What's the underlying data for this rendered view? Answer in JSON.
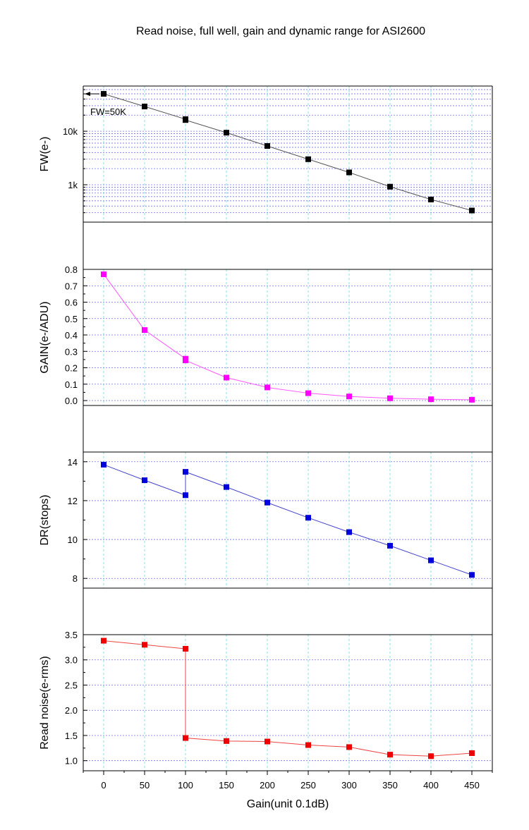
{
  "chart_data": {
    "title": "Read noise, full well, gain and dynamic range for ASI2600",
    "xlabel": "Gain(unit 0.1dB)",
    "xlim": [
      -25,
      475
    ],
    "xticks": [
      "0",
      "50",
      "100",
      "150",
      "200",
      "250",
      "300",
      "350",
      "400",
      "450"
    ],
    "grid": true,
    "panels": [
      {
        "type": "line",
        "ylabel": "FW(e-)",
        "yscale": "log",
        "ylim": [
          200,
          70000
        ],
        "yticks": [
          "1k",
          "10k"
        ],
        "color": "#000000",
        "line_color": "#555555",
        "annotation": "FW=50K",
        "x": [
          0,
          50,
          100,
          100,
          150,
          200,
          250,
          300,
          350,
          400,
          450
        ],
        "values": [
          50000,
          29000,
          16800,
          16200,
          9400,
          5300,
          3000,
          1700,
          920,
          530,
          330
        ]
      },
      {
        "type": "line",
        "ylabel": "GAIN(e-/ADU)",
        "ylim": [
          -0.03,
          0.8
        ],
        "yticks": [
          "0.0",
          "0.1",
          "0.2",
          "0.3",
          "0.4",
          "0.5",
          "0.6",
          "0.7",
          "0.8"
        ],
        "color": "#ff00ff",
        "line_color": "#ff55ff",
        "x": [
          0,
          50,
          100,
          100,
          150,
          200,
          250,
          300,
          350,
          400,
          450
        ],
        "values": [
          0.77,
          0.43,
          0.255,
          0.245,
          0.14,
          0.08,
          0.045,
          0.025,
          0.014,
          0.008,
          0.005
        ]
      },
      {
        "type": "line",
        "ylabel": "DR(stops)",
        "ylim": [
          7.5,
          14.5
        ],
        "yticks": [
          "8",
          "10",
          "12",
          "14"
        ],
        "color": "#0000dd",
        "line_color": "#4444cc",
        "x": [
          0,
          50,
          100,
          100,
          150,
          200,
          250,
          300,
          350,
          400,
          450
        ],
        "values": [
          13.85,
          13.05,
          12.28,
          13.48,
          12.7,
          11.9,
          11.12,
          10.38,
          9.68,
          8.93,
          8.18
        ]
      },
      {
        "type": "line",
        "ylabel": "Read noise(e-rms)",
        "ylim": [
          0.8,
          3.5
        ],
        "yticks": [
          "1.0",
          "1.5",
          "2.0",
          "2.5",
          "3.0",
          "3.5"
        ],
        "color": "#ee0000",
        "line_color": "#ee4444",
        "x": [
          0,
          50,
          100,
          100,
          150,
          200,
          250,
          300,
          350,
          400,
          450
        ],
        "values": [
          3.38,
          3.3,
          3.22,
          1.45,
          1.39,
          1.38,
          1.31,
          1.27,
          1.12,
          1.09,
          1.15
        ]
      }
    ]
  }
}
